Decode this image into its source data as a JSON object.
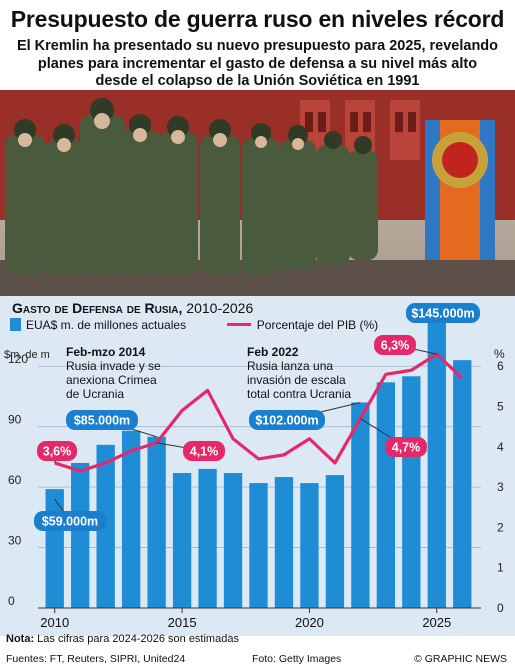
{
  "header": {
    "title": "Presupuesto de guerra ruso en niveles récord",
    "subtitle_lines": [
      "El Kremlin ha presentado su nuevo presupuesto para 2025, revelando",
      "planes para incrementar el gasto de defensa a su nivel más alto",
      "desde el colapso de la Unión Soviética en 1991"
    ]
  },
  "photo": {
    "description": "Rusos soldados desfilando en la Plaza Roja"
  },
  "chart_heading": {
    "main": "Gasto de Defensa de Rusia,",
    "years": "2010-2026"
  },
  "legend": {
    "bars": "EUA$ m. de millones actuales",
    "line": "Porcentaje del PIB (%)"
  },
  "colors": {
    "bars": "#1f8dd6",
    "line": "#e5286a",
    "panel": "#dce9f5",
    "callout_blue": "#1a7fcf",
    "callout_pink": "#e5286a"
  },
  "chart_data": {
    "type": "bar",
    "xlabel": "",
    "left_axis_label": "$m. de m",
    "right_axis_label": "%",
    "x": [
      2010,
      2011,
      2012,
      2013,
      2014,
      2015,
      2016,
      2017,
      2018,
      2019,
      2020,
      2021,
      2022,
      2023,
      2024,
      2025,
      2026
    ],
    "x_ticks": [
      2010,
      2015,
      2020,
      2025
    ],
    "ylim": [
      0,
      135
    ],
    "y_ticks": [
      0,
      30,
      60,
      90,
      120
    ],
    "y2lim": [
      0,
      6.75
    ],
    "y2_ticks": [
      0,
      1,
      2,
      3,
      4,
      5,
      6
    ],
    "series": [
      {
        "name": "EUA$ m. de millones actuales",
        "type": "bar",
        "axis": "left",
        "values": [
          59,
          72,
          81,
          88,
          85,
          67,
          69,
          67,
          62,
          65,
          62,
          66,
          102,
          112,
          115,
          145,
          123
        ]
      },
      {
        "name": "Porcentaje del PIB (%)",
        "type": "line",
        "axis": "right",
        "values": [
          3.6,
          3.4,
          3.6,
          3.9,
          4.1,
          4.9,
          5.4,
          4.2,
          3.7,
          3.8,
          4.2,
          3.6,
          4.7,
          5.8,
          5.9,
          6.3,
          5.7
        ]
      }
    ],
    "value_labels": [
      {
        "text": "$59.000m",
        "year": 2010
      },
      {
        "text": "$85.000m",
        "year": 2014
      },
      {
        "text": "$102.000m",
        "year": 2022
      },
      {
        "text": "$145.000m",
        "year": 2025
      },
      {
        "text": "3,6%",
        "year": 2010
      },
      {
        "text": "4,1%",
        "year": 2014
      },
      {
        "text": "4,7%",
        "year": 2022
      },
      {
        "text": "6,3%",
        "year": 2025
      }
    ],
    "annotations": [
      {
        "title": "Feb-mzo 2014",
        "lines": [
          "Rusia invade y se",
          "anexiona Crimea",
          "de Ucrania"
        ]
      },
      {
        "title": "Feb 2022",
        "lines": [
          "Rusia lanza una",
          "invasión de escala",
          "total contra Ucrania"
        ]
      }
    ]
  },
  "footer": {
    "note_label": "Nota:",
    "note_text": " Las cifras para 2024-2026 son estimadas",
    "sources": "Fuentes: FT, Reuters, SIPRI, United24",
    "photo_credit": "Foto: Getty Images",
    "brand": "© GRAPHIC NEWS"
  }
}
